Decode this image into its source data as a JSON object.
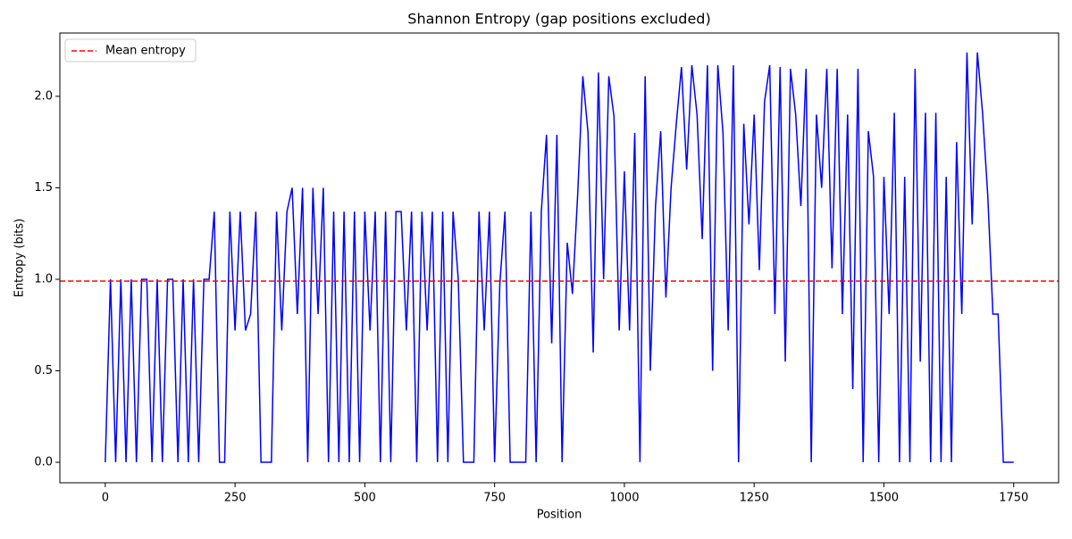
{
  "chart_data": {
    "type": "line",
    "title": "Shannon Entropy (gap positions excluded)",
    "x_label": "Position",
    "y_label": "Entropy (bits)",
    "x": [
      0,
      10,
      20,
      30,
      40,
      50,
      60,
      70,
      80,
      90,
      100,
      110,
      120,
      130,
      140,
      150,
      160,
      170,
      180,
      190,
      200,
      210,
      220,
      230,
      240,
      250,
      260,
      270,
      280,
      290,
      300,
      310,
      320,
      330,
      340,
      350,
      360,
      370,
      380,
      390,
      400,
      410,
      420,
      430,
      440,
      450,
      460,
      470,
      480,
      490,
      500,
      510,
      520,
      530,
      540,
      550,
      560,
      570,
      580,
      590,
      600,
      610,
      620,
      630,
      640,
      650,
      660,
      670,
      680,
      690,
      700,
      710,
      720,
      730,
      740,
      750,
      760,
      770,
      780,
      790,
      800,
      810,
      820,
      830,
      840,
      850,
      860,
      870,
      880,
      890,
      900,
      910,
      920,
      930,
      940,
      950,
      960,
      970,
      980,
      990,
      1000,
      1010,
      1020,
      1030,
      1040,
      1050,
      1060,
      1070,
      1080,
      1090,
      1100,
      1110,
      1120,
      1130,
      1140,
      1150,
      1160,
      1170,
      1180,
      1190,
      1200,
      1210,
      1220,
      1230,
      1240,
      1250,
      1260,
      1270,
      1280,
      1290,
      1300,
      1310,
      1320,
      1330,
      1340,
      1350,
      1360,
      1370,
      1380,
      1390,
      1400,
      1410,
      1420,
      1430,
      1440,
      1450,
      1460,
      1470,
      1480,
      1490,
      1500,
      1510,
      1520,
      1530,
      1540,
      1550,
      1560,
      1570,
      1580,
      1590,
      1600,
      1610,
      1620,
      1630,
      1640,
      1650,
      1660,
      1670,
      1680,
      1690,
      1700,
      1710,
      1720,
      1730,
      1740,
      1750
    ],
    "series": [
      {
        "color": "#0000ff",
        "values": [
          0,
          1,
          0,
          1,
          0,
          1,
          0,
          1,
          1,
          0,
          1,
          0,
          1,
          1,
          0,
          1,
          0,
          1,
          0,
          1,
          1,
          1.37,
          0,
          0,
          1.37,
          0.72,
          1.37,
          0.72,
          0.81,
          1.37,
          0,
          0,
          0,
          1.37,
          0.72,
          1.37,
          1.5,
          0.81,
          1.5,
          0,
          1.5,
          0.81,
          1.5,
          0,
          1.37,
          0,
          1.37,
          0,
          1.37,
          0,
          1.37,
          0.72,
          1.37,
          0,
          1.37,
          0,
          1.37,
          1.37,
          0.72,
          1.37,
          0,
          1.37,
          0.72,
          1.37,
          0,
          1.37,
          0,
          1.37,
          1.0,
          0,
          0,
          0,
          1.37,
          0.72,
          1.37,
          0,
          0.97,
          1.37,
          0,
          0,
          0,
          0,
          1.37,
          0,
          1.37,
          1.79,
          0.65,
          1.79,
          0,
          1.2,
          0.92,
          1.46,
          2.11,
          1.8,
          0.6,
          2.13,
          1.0,
          2.11,
          1.89,
          0.72,
          1.59,
          0.72,
          1.8,
          0,
          2.11,
          0.5,
          1.4,
          1.81,
          0.9,
          1.5,
          1.85,
          2.16,
          1.6,
          2.17,
          1.9,
          1.22,
          2.17,
          0.5,
          2.17,
          1.8,
          0.72,
          2.17,
          0,
          1.85,
          1.3,
          1.9,
          1.05,
          1.97,
          2.17,
          0.81,
          2.16,
          0.55,
          2.15,
          1.9,
          1.4,
          2.15,
          0,
          1.9,
          1.5,
          2.15,
          1.06,
          2.15,
          0.81,
          1.9,
          0.4,
          2.15,
          0,
          1.81,
          1.56,
          0,
          1.56,
          0.81,
          1.91,
          0,
          1.56,
          0,
          2.15,
          0.55,
          1.91,
          0,
          1.91,
          0,
          1.56,
          0,
          1.75,
          0.81,
          2.24,
          1.3,
          2.24,
          1.91,
          1.46,
          0.81,
          0.81,
          0,
          0,
          0
        ]
      }
    ],
    "reference_lines": [
      {
        "name": "Mean entropy",
        "value": 0.99,
        "color": "#ff0000",
        "style": "dashed"
      }
    ],
    "legend": "upper left",
    "xlim": [
      -87.5,
      1836.5
    ],
    "xticks": [
      0,
      250,
      500,
      750,
      1000,
      1250,
      1500,
      1750
    ],
    "ylim": [
      -0.112,
      2.346
    ],
    "yticks": [
      {
        "value": 0,
        "label": "0.0"
      },
      0.5,
      {
        "value": 1,
        "label": "1.0"
      },
      1.5,
      {
        "value": 2,
        "label": "2.0"
      }
    ]
  }
}
